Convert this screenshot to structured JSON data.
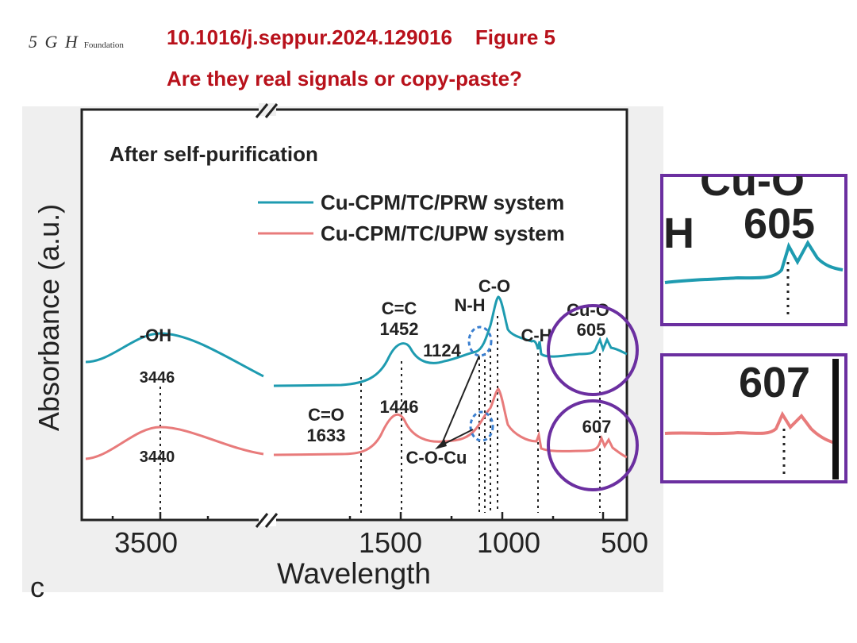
{
  "header": {
    "logo_mark": "5 G H",
    "logo_word": "Foundation",
    "doi": "10.1016/j.seppur.2024.129016",
    "figure": "Figure 5",
    "question": "Are they real signals or copy-paste?"
  },
  "chart_data": {
    "type": "line",
    "title": "After self-purification",
    "xlabel": "Wavelength",
    "ylabel": "Absorbance (a.u.)",
    "x_axis": "reversed, broken between 3500 and 1500 region",
    "x_ticks": [
      "3500",
      "1500",
      "1000",
      "500"
    ],
    "legend_position": "top-right",
    "panel_letter": "c",
    "series": [
      {
        "name": "Cu-CPM/TC/PRW system",
        "color": "#1e9bb0"
      },
      {
        "name": "Cu-CPM/TC/UPW system",
        "color": "#e87b7b"
      }
    ],
    "annotations": {
      "oh_label": "-OH",
      "oh_upper": "3446",
      "oh_lower": "3440",
      "cc_label": "C=C",
      "cc_upper": "1452",
      "cc_lower": "1446",
      "co_label": "C=O",
      "co_value": "1633",
      "v1124": "1124",
      "nh_label": "N-H",
      "co_top": "C-O",
      "ch_label": "C-H",
      "cuo_label": "Cu-O",
      "cuo_upper": "605",
      "cuo_lower": "607",
      "cocu_label": "C-O-Cu"
    }
  },
  "zoom_panels": {
    "top_label": "Cu-O",
    "top_left_char": "H",
    "top_value": "605",
    "bottom_value": "607"
  },
  "colors": {
    "header_red": "#b8111b",
    "circle_purple": "#6b2fa0",
    "prw": "#1e9bb0",
    "upw": "#e87b7b",
    "marker_blue": "#3a7fd0"
  }
}
